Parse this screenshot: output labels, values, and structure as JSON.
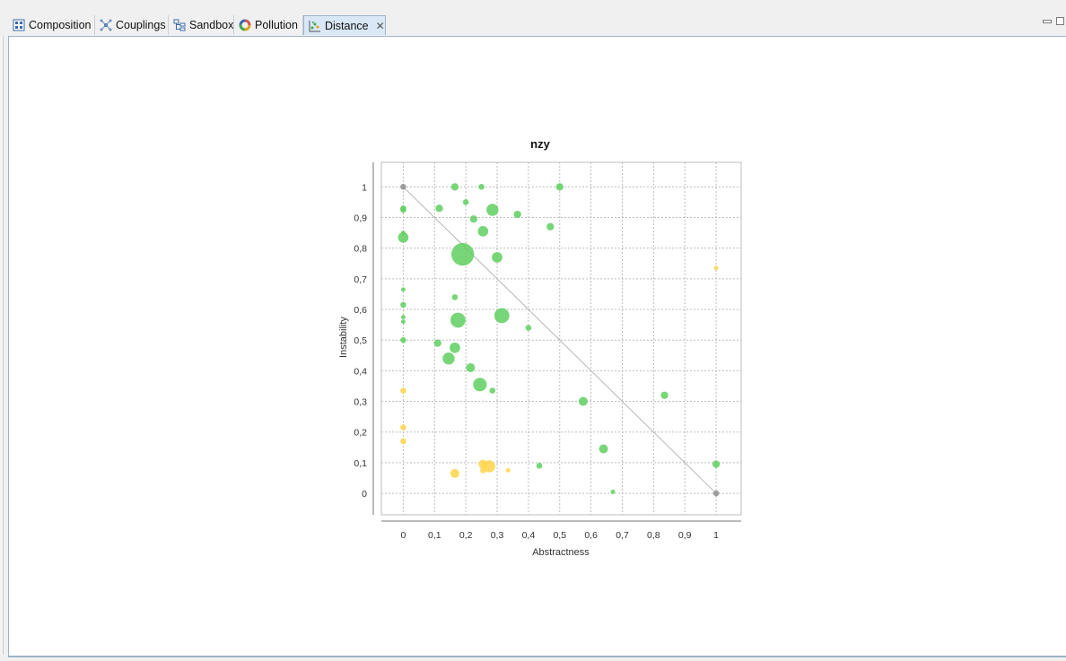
{
  "tabs": [
    {
      "label": "Composition",
      "icon": "grid-icon",
      "active": false
    },
    {
      "label": "Couplings",
      "icon": "network-icon",
      "active": false
    },
    {
      "label": "Sandbox",
      "icon": "hierarchy-icon",
      "active": false
    },
    {
      "label": "Pollution",
      "icon": "donut-icon",
      "active": false
    },
    {
      "label": "Distance",
      "icon": "scatter-icon",
      "active": true
    }
  ],
  "colors": {
    "stable_fill": "#5fcf5f",
    "warning_fill": "#ffd54a",
    "neutral_point": "#8e8e8e",
    "grid": "#bdbdbd",
    "diagonal": "#b7b7b7",
    "tab_active_bg": "#d9e7f6"
  },
  "chart_data": {
    "type": "scatter",
    "title": "nzy",
    "xlabel": "Abstractness",
    "ylabel": "Instability",
    "xlim": [
      -0.07,
      1.08
    ],
    "ylim": [
      -0.07,
      1.08
    ],
    "xticks": [
      "0",
      "0,1",
      "0,2",
      "0,3",
      "0,4",
      "0,5",
      "0,6",
      "0,7",
      "0,8",
      "0,9",
      "1"
    ],
    "yticks": [
      "0",
      "0,1",
      "0,2",
      "0,3",
      "0,4",
      "0,5",
      "0,6",
      "0,7",
      "0,8",
      "0,9",
      "1"
    ],
    "grid": true,
    "diagonal": {
      "from": [
        0,
        1
      ],
      "to": [
        1,
        0
      ]
    },
    "points": [
      {
        "x": 0,
        "y": 1,
        "size": 2,
        "color": "gray"
      },
      {
        "x": 0,
        "y": 0.93,
        "size": 2,
        "color": "green"
      },
      {
        "x": 0,
        "y": 0.925,
        "size": 2,
        "color": "green"
      },
      {
        "x": 0,
        "y": 0.85,
        "size": 1,
        "color": "green"
      },
      {
        "x": 0,
        "y": 0.835,
        "size": 5,
        "color": "green"
      },
      {
        "x": 0,
        "y": 0.665,
        "size": 1,
        "color": "green"
      },
      {
        "x": 0,
        "y": 0.615,
        "size": 2,
        "color": "green"
      },
      {
        "x": 0,
        "y": 0.575,
        "size": 1,
        "color": "green"
      },
      {
        "x": 0,
        "y": 0.56,
        "size": 1,
        "color": "green"
      },
      {
        "x": 0,
        "y": 0.5,
        "size": 2,
        "color": "green"
      },
      {
        "x": 0,
        "y": 0.335,
        "size": 2,
        "color": "yellow"
      },
      {
        "x": 0,
        "y": 0.215,
        "size": 2,
        "color": "yellow"
      },
      {
        "x": 0,
        "y": 0.17,
        "size": 2,
        "color": "yellow"
      },
      {
        "x": 0.115,
        "y": 0.93,
        "size": 3,
        "color": "green"
      },
      {
        "x": 0.165,
        "y": 1,
        "size": 3,
        "color": "green"
      },
      {
        "x": 0.2,
        "y": 0.95,
        "size": 2,
        "color": "green"
      },
      {
        "x": 0.225,
        "y": 0.895,
        "size": 3,
        "color": "green"
      },
      {
        "x": 0.25,
        "y": 1,
        "size": 2,
        "color": "green"
      },
      {
        "x": 0.285,
        "y": 0.925,
        "size": 6,
        "color": "green"
      },
      {
        "x": 0.255,
        "y": 0.855,
        "size": 5,
        "color": "green"
      },
      {
        "x": 0.19,
        "y": 0.78,
        "size": 13,
        "color": "green"
      },
      {
        "x": 0.3,
        "y": 0.77,
        "size": 5,
        "color": "green"
      },
      {
        "x": 0.365,
        "y": 0.91,
        "size": 3,
        "color": "green"
      },
      {
        "x": 0.47,
        "y": 0.87,
        "size": 3,
        "color": "green"
      },
      {
        "x": 0.5,
        "y": 1,
        "size": 3,
        "color": "green"
      },
      {
        "x": 0.165,
        "y": 0.64,
        "size": 2,
        "color": "green"
      },
      {
        "x": 0.175,
        "y": 0.565,
        "size": 8,
        "color": "green"
      },
      {
        "x": 0.315,
        "y": 0.58,
        "size": 8,
        "color": "green"
      },
      {
        "x": 0.4,
        "y": 0.54,
        "size": 2,
        "color": "green"
      },
      {
        "x": 0.11,
        "y": 0.49,
        "size": 3,
        "color": "green"
      },
      {
        "x": 0.165,
        "y": 0.475,
        "size": 5,
        "color": "green"
      },
      {
        "x": 0.145,
        "y": 0.44,
        "size": 6,
        "color": "green"
      },
      {
        "x": 0.215,
        "y": 0.41,
        "size": 4,
        "color": "green"
      },
      {
        "x": 0.245,
        "y": 0.355,
        "size": 7,
        "color": "green"
      },
      {
        "x": 0.285,
        "y": 0.335,
        "size": 2,
        "color": "green"
      },
      {
        "x": 0.575,
        "y": 0.3,
        "size": 4,
        "color": "green"
      },
      {
        "x": 0.835,
        "y": 0.32,
        "size": 3,
        "color": "green"
      },
      {
        "x": 0.64,
        "y": 0.145,
        "size": 4,
        "color": "green"
      },
      {
        "x": 0.435,
        "y": 0.09,
        "size": 2,
        "color": "green"
      },
      {
        "x": 0.67,
        "y": 0.005,
        "size": 1,
        "color": "green"
      },
      {
        "x": 1,
        "y": 0.095,
        "size": 3,
        "color": "green"
      },
      {
        "x": 1,
        "y": 0.735,
        "size": 1,
        "color": "yellow"
      },
      {
        "x": 1,
        "y": 0,
        "size": 2,
        "color": "gray"
      },
      {
        "x": 0.165,
        "y": 0.065,
        "size": 4,
        "color": "yellow"
      },
      {
        "x": 0.255,
        "y": 0.095,
        "size": 4,
        "color": "yellow"
      },
      {
        "x": 0.275,
        "y": 0.088,
        "size": 6,
        "color": "yellow"
      },
      {
        "x": 0.255,
        "y": 0.075,
        "size": 2,
        "color": "yellow"
      },
      {
        "x": 0.335,
        "y": 0.075,
        "size": 1,
        "color": "yellow"
      }
    ]
  }
}
